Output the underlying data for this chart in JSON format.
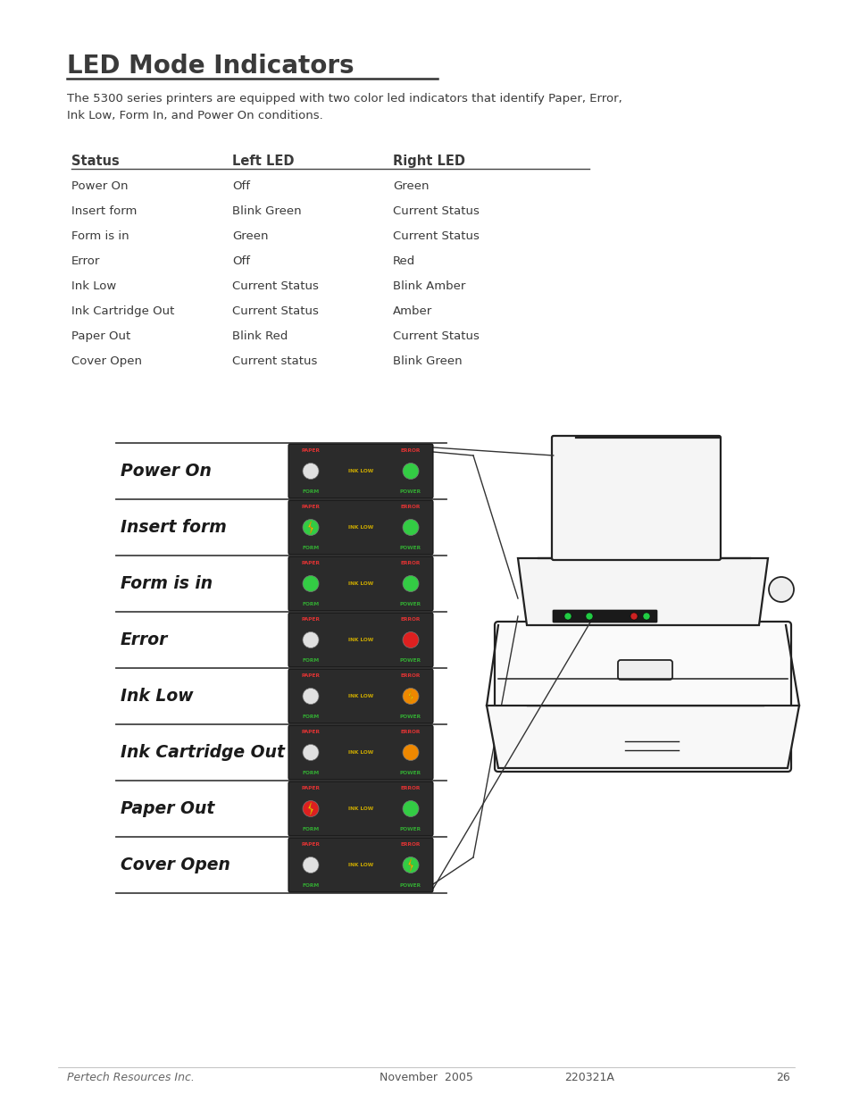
{
  "title": "LED Mode Indicators",
  "intro_text": "The 5300 series printers are equipped with two color led indicators that identify Paper, Error,\nInk Low, Form In, and Power On conditions.",
  "table_headers": [
    "Status",
    "Left LED",
    "Right LED"
  ],
  "table_rows": [
    [
      "Power On",
      "Off",
      "Green"
    ],
    [
      "Insert form",
      "Blink Green",
      "Current Status"
    ],
    [
      "Form is in",
      "Green",
      "Current Status"
    ],
    [
      "Error",
      "Off",
      "Red"
    ],
    [
      "Ink Low",
      "Current Status",
      "Blink Amber"
    ],
    [
      "Ink Cartridge Out",
      "Current Status",
      "Amber"
    ],
    [
      "Paper Out",
      "Blink Red",
      "Current Status"
    ],
    [
      "Cover Open",
      "Current status",
      "Blink Green"
    ]
  ],
  "footer_left": "Pertech Resources Inc.",
  "footer_center": "November  2005",
  "footer_right": "220321A",
  "footer_page": "26",
  "bg_color": "#ffffff",
  "text_color": "#3a3a3a",
  "panel_bg": "#2b2b2b",
  "modes": [
    {
      "label": "Power On",
      "left_led": "white",
      "left_blink": false,
      "right_led": "green",
      "right_blink": false
    },
    {
      "label": "Insert form",
      "left_led": "green",
      "left_blink": true,
      "right_led": "green",
      "right_blink": false
    },
    {
      "label": "Form is in",
      "left_led": "green",
      "left_blink": false,
      "right_led": "green",
      "right_blink": false
    },
    {
      "label": "Error",
      "left_led": "white",
      "left_blink": false,
      "right_led": "red",
      "right_blink": false
    },
    {
      "label": "Ink Low",
      "left_led": "white",
      "left_blink": false,
      "right_led": "amber",
      "right_blink": true
    },
    {
      "label": "Ink Cartridge Out",
      "left_led": "white",
      "left_blink": false,
      "right_led": "amber",
      "right_blink": false
    },
    {
      "label": "Paper Out",
      "left_led": "red",
      "left_blink": true,
      "right_led": "green",
      "right_blink": false
    },
    {
      "label": "Cover Open",
      "left_led": "white",
      "left_blink": false,
      "right_led": "green",
      "right_blink": true
    }
  ]
}
